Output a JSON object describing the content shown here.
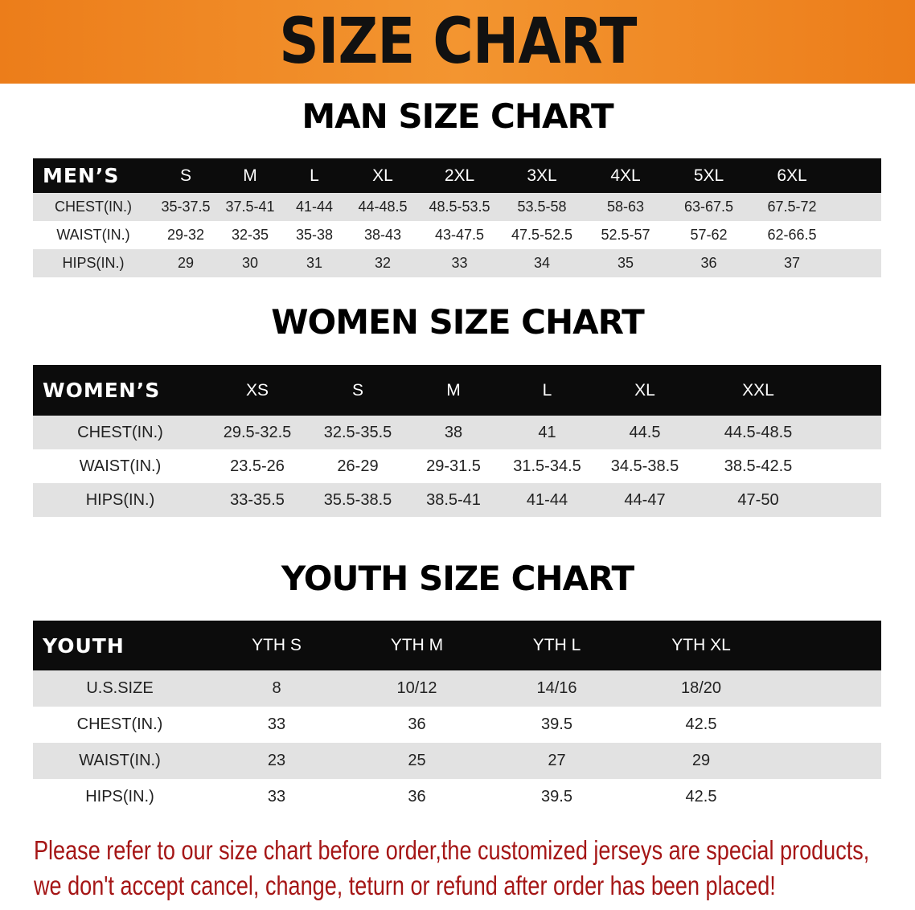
{
  "banner_title": "SIZE CHART",
  "men": {
    "title": "MAN SIZE CHART",
    "header": [
      "MEN’S",
      "S",
      "M",
      "L",
      "XL",
      "2XL",
      "3XL",
      "4XL",
      "5XL",
      "6XL"
    ],
    "rows": [
      [
        "CHEST(IN.)",
        "35-37.5",
        "37.5-41",
        "41-44",
        "44-48.5",
        "48.5-53.5",
        "53.5-58",
        "58-63",
        "63-67.5",
        "67.5-72"
      ],
      [
        "WAIST(IN.)",
        "29-32",
        "32-35",
        "35-38",
        "38-43",
        "43-47.5",
        "47.5-52.5",
        "52.5-57",
        "57-62",
        "62-66.5"
      ],
      [
        "HIPS(IN.)",
        "29",
        "30",
        "31",
        "32",
        "33",
        "34",
        "35",
        "36",
        "37"
      ]
    ]
  },
  "women": {
    "title": "WOMEN SIZE CHART",
    "header": [
      "WOMEN’S",
      "XS",
      "S",
      "M",
      "L",
      "XL",
      "XXL"
    ],
    "rows": [
      [
        "CHEST(IN.)",
        "29.5-32.5",
        "32.5-35.5",
        "38",
        "41",
        "44.5",
        "44.5-48.5"
      ],
      [
        "WAIST(IN.)",
        "23.5-26",
        "26-29",
        "29-31.5",
        "31.5-34.5",
        "34.5-38.5",
        "38.5-42.5"
      ],
      [
        "HIPS(IN.)",
        "33-35.5",
        "35.5-38.5",
        "38.5-41",
        "41-44",
        "44-47",
        "47-50"
      ]
    ]
  },
  "youth": {
    "title": "YOUTH SIZE CHART",
    "header": [
      "YOUTH",
      "YTH S",
      "YTH M",
      "YTH L",
      "YTH XL"
    ],
    "rows": [
      [
        "U.S.SIZE",
        "8",
        "10/12",
        "14/16",
        "18/20"
      ],
      [
        "CHEST(IN.)",
        "33",
        "36",
        "39.5",
        "42.5"
      ],
      [
        "WAIST(IN.)",
        "23",
        "25",
        "27",
        "29"
      ],
      [
        "HIPS(IN.)",
        "33",
        "36",
        "39.5",
        "42.5"
      ]
    ]
  },
  "notice": [
    "Please refer to our size chart before order,the customized jerseys are special products,",
    "we don't accept cancel, change, teturn or refund after order has been placed!"
  ],
  "colors": {
    "banner": "#ec7d1a",
    "header_row": "#0c0c0c",
    "shaded_row": "#e2e2e2",
    "notice_text": "#a51616"
  }
}
